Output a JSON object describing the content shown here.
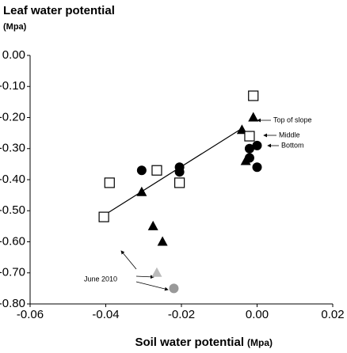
{
  "chart_data": {
    "type": "scatter",
    "y_label": "Leaf water potential",
    "y_unit": "(Mpa)",
    "x_label": "Soil water potential",
    "x_unit": "(Mpa)",
    "xlim": [
      -0.06,
      0.02
    ],
    "xticks": [
      {
        "value": -0.06,
        "label": "-0.06"
      },
      {
        "value": -0.04,
        "label": "-0.04"
      },
      {
        "value": -0.02,
        "label": "-0.02"
      },
      {
        "value": 0,
        "label": "0.00"
      },
      {
        "value": 0.02,
        "label": "0.02"
      }
    ],
    "ylim": [
      -0.8,
      0
    ],
    "yticks": [
      {
        "value": 0,
        "label": "0.00"
      },
      {
        "value": -0.1,
        "label": "-0.10"
      },
      {
        "value": -0.2,
        "label": "-0.20"
      },
      {
        "value": -0.3,
        "label": "-0.30"
      },
      {
        "value": -0.4,
        "label": "-0.40"
      },
      {
        "value": -0.5,
        "label": "-0.50"
      },
      {
        "value": -0.6,
        "label": "-0.60"
      },
      {
        "value": -0.7,
        "label": "-0.70"
      },
      {
        "value": -0.8,
        "label": "-0.80"
      }
    ],
    "series": [
      {
        "marker": "triangle",
        "color": "#000000",
        "x": [
          -0.001,
          -0.004,
          -0.003,
          -0.0305,
          -0.0275,
          -0.025
        ],
        "y": [
          -0.2,
          -0.24,
          -0.34,
          -0.44,
          -0.55,
          -0.6
        ]
      },
      {
        "marker": "square",
        "color": "#000000",
        "x": [
          -0.001,
          -0.002,
          -0.0405,
          -0.039,
          -0.0265,
          -0.0205
        ],
        "y": [
          -0.13,
          -0.26,
          -0.52,
          -0.41,
          -0.37,
          -0.41
        ]
      },
      {
        "marker": "circle",
        "color": "#000000",
        "x": [
          -0.002,
          0.0,
          -0.002,
          0.0,
          -0.0305,
          -0.0205,
          -0.0205
        ],
        "y": [
          -0.3,
          -0.29,
          -0.33,
          -0.36,
          -0.37,
          -0.36,
          -0.375
        ]
      },
      {
        "marker": "triangle",
        "color": "#bbbbbb",
        "x": [
          -0.0265
        ],
        "y": [
          -0.7
        ]
      },
      {
        "marker": "circle",
        "color": "#999999",
        "x": [
          -0.022
        ],
        "y": [
          -0.75
        ]
      }
    ],
    "trend": {
      "x": [
        -0.0405,
        -0.004
      ],
      "y": [
        -0.515,
        -0.235
      ]
    },
    "annotations": [
      "Top of slope",
      "Middle",
      "Bottom",
      "June 2010"
    ]
  }
}
